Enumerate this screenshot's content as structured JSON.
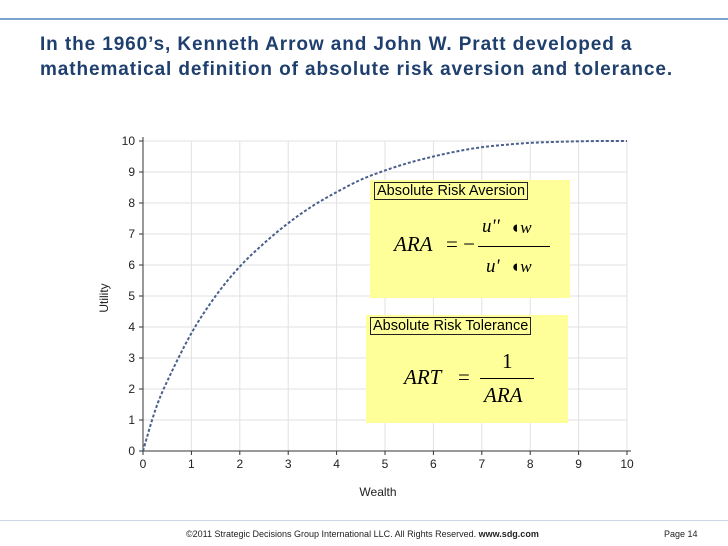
{
  "slide": {
    "title": "In the 1960’s, Kenneth Arrow and John W. Pratt developed a mathematical definition of absolute risk aversion and tolerance.",
    "footer_copyright": "©2011 Strategic Decisions Group International LLC. All Rights Reserved.",
    "footer_url": "www.sdg.com",
    "footer_page": "Page 14"
  },
  "ara_box": {
    "heading": "Absolute Risk Aversion",
    "lhs": "ARA",
    "equals_minus": "= −",
    "numerator": "u''",
    "denominator": "u'"
  },
  "art_box": {
    "heading": "Absolute Risk Tolerance",
    "lhs": "ART",
    "equals": "=",
    "numerator": "1",
    "denominator": "ARA"
  },
  "chart_data": {
    "type": "line",
    "title": "",
    "xlabel": "Wealth",
    "ylabel": "Utility",
    "xlim": [
      0,
      10
    ],
    "ylim": [
      0,
      10
    ],
    "xticks": [
      0,
      1,
      2,
      3,
      4,
      5,
      6,
      7,
      8,
      9,
      10
    ],
    "yticks": [
      0,
      1,
      2,
      3,
      4,
      5,
      6,
      7,
      8,
      9,
      10
    ],
    "grid": true,
    "legend": "none",
    "line_style": "dashed",
    "line_color": "#4a5f8c",
    "x": [
      0,
      0.25,
      0.5,
      1,
      1.5,
      2,
      2.5,
      3,
      3.5,
      4,
      4.5,
      5,
      5.5,
      6,
      6.5,
      7,
      7.5,
      8,
      8.5,
      9,
      9.5,
      10
    ],
    "y": [
      0,
      1.3,
      2.25,
      3.8,
      5.0,
      5.95,
      6.7,
      7.35,
      7.9,
      8.35,
      8.75,
      9.05,
      9.3,
      9.5,
      9.67,
      9.8,
      9.88,
      9.94,
      9.97,
      9.99,
      10.0,
      10.0
    ]
  }
}
